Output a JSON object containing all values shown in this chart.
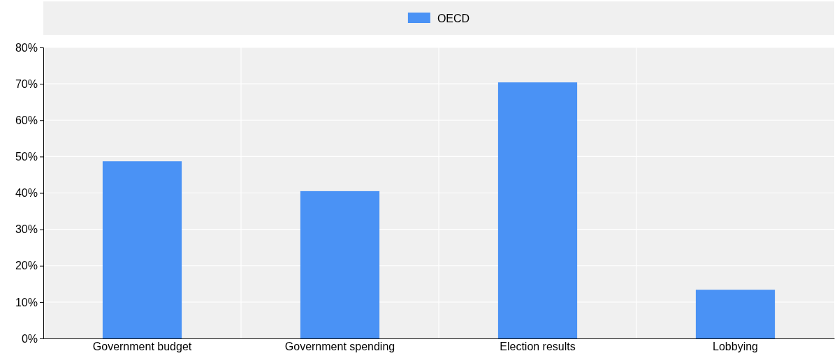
{
  "chart_data": {
    "type": "bar",
    "categories": [
      "Government budget",
      "Government spending",
      "Election results",
      "Lobbying"
    ],
    "series": [
      {
        "name": "OECD",
        "color": "#4a92f5",
        "values": [
          48.7,
          40.5,
          70.4,
          13.4
        ]
      }
    ],
    "ylim": [
      0,
      80
    ],
    "yticks": [
      {
        "value": 0,
        "label": "0%"
      },
      {
        "value": 10,
        "label": "10%"
      },
      {
        "value": 20,
        "label": "20%"
      },
      {
        "value": 30,
        "label": "30%"
      },
      {
        "value": 40,
        "label": "40%"
      },
      {
        "value": 50,
        "label": "50%"
      },
      {
        "value": 60,
        "label": "60%"
      },
      {
        "value": 70,
        "label": "70%"
      },
      {
        "value": 80,
        "label": "80%"
      }
    ],
    "grid": true,
    "legend": "top"
  }
}
